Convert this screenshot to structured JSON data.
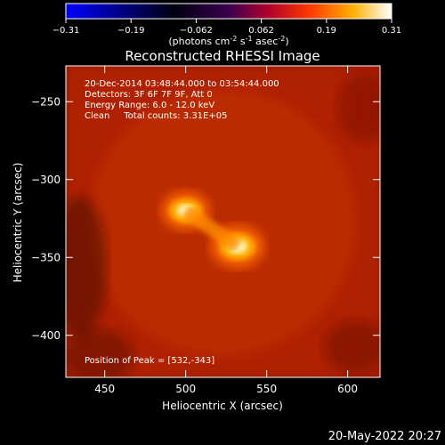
{
  "chart_data": {
    "type": "heatmap",
    "title": "Reconstructed RHESSI Image",
    "xlabel": "Heliocentric X (arcsec)",
    "ylabel": "Heliocentric Y (arcsec)",
    "xlim": [
      426,
      620
    ],
    "ylim": [
      -427,
      -227
    ],
    "x_ticks": [
      450,
      500,
      550,
      600
    ],
    "y_ticks": [
      -250,
      -300,
      -350,
      -400
    ],
    "colorbar": {
      "range": [
        -0.31,
        0.31
      ],
      "ticks": [
        "-0.31",
        "-0.19",
        "-0.062",
        "0.062",
        "0.19",
        "0.31"
      ],
      "unit_label": "(photons cm",
      "unit_exp1": "-2",
      "unit_mid": " s",
      "unit_exp2": "-1",
      "unit_mid2": " asec",
      "unit_exp3": "-2",
      "unit_close": ")",
      "colormap": [
        "#0000ff",
        "#000000",
        "#8a00b0",
        "#ff3000",
        "#ffc000",
        "#ffffff"
      ]
    },
    "annotations": [
      "20-Dec-2014 03:48:44.000 to 03:54:44.000",
      "Detectors: 3F 6F 7F 9F, Att 0",
      "Energy Range: 6.0 - 12.0 keV",
      "Clean     Total counts: 3.31E+05"
    ],
    "peak_label": "Position of Peak = [532,-343]",
    "sources": [
      {
        "name": "source-upper",
        "x": 500,
        "y": -320,
        "peak": 0.28
      },
      {
        "name": "source-peak",
        "x": 532,
        "y": -343,
        "peak": 0.31
      }
    ]
  },
  "footer": {
    "date": "20-May-2022 20:27"
  }
}
